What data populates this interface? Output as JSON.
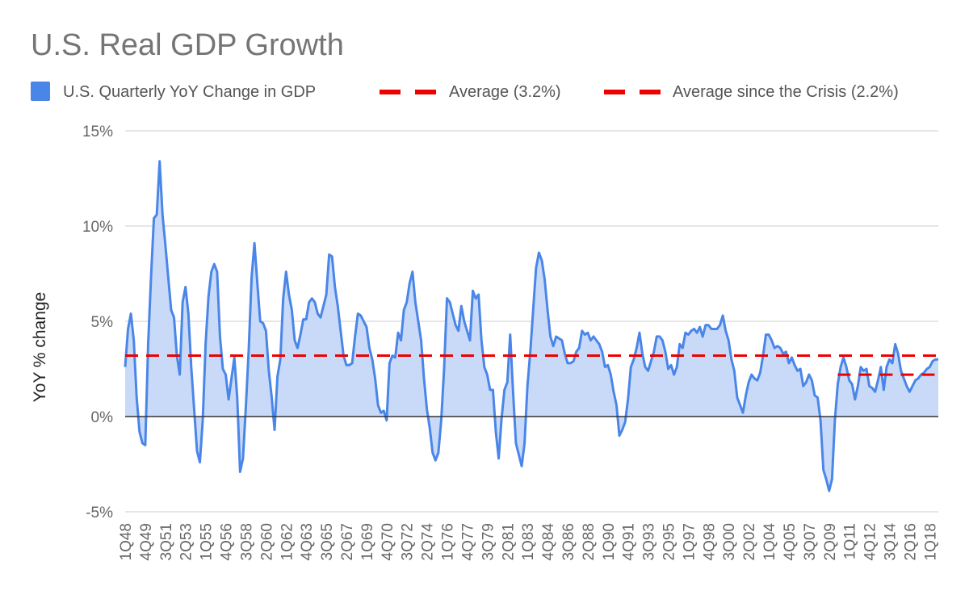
{
  "chart_data": {
    "type": "area",
    "title": "U.S. Real GDP Growth",
    "y_label": "YoY % change",
    "categories": [
      "1Q48",
      null,
      null,
      null,
      null,
      null,
      null,
      "4Q49",
      null,
      null,
      null,
      null,
      null,
      null,
      "3Q51",
      null,
      null,
      null,
      null,
      null,
      null,
      "2Q53",
      null,
      null,
      null,
      null,
      null,
      null,
      "1Q55",
      null,
      null,
      null,
      null,
      null,
      null,
      "4Q56",
      null,
      null,
      null,
      null,
      null,
      null,
      "3Q58",
      null,
      null,
      null,
      null,
      null,
      null,
      "2Q60",
      null,
      null,
      null,
      null,
      null,
      null,
      "1Q62",
      null,
      null,
      null,
      null,
      null,
      null,
      "4Q63",
      null,
      null,
      null,
      null,
      null,
      null,
      "3Q65",
      null,
      null,
      null,
      null,
      null,
      null,
      "2Q67",
      null,
      null,
      null,
      null,
      null,
      null,
      "1Q69",
      null,
      null,
      null,
      null,
      null,
      null,
      "4Q70",
      null,
      null,
      null,
      null,
      null,
      null,
      "3Q72",
      null,
      null,
      null,
      null,
      null,
      null,
      "2Q74",
      null,
      null,
      null,
      null,
      null,
      null,
      "1Q76",
      null,
      null,
      null,
      null,
      null,
      null,
      "4Q77",
      null,
      null,
      null,
      null,
      null,
      null,
      "3Q79",
      null,
      null,
      null,
      null,
      null,
      null,
      "2Q81",
      null,
      null,
      null,
      null,
      null,
      null,
      "1Q83",
      null,
      null,
      null,
      null,
      null,
      null,
      "4Q84",
      null,
      null,
      null,
      null,
      null,
      null,
      "3Q86",
      null,
      null,
      null,
      null,
      null,
      null,
      "2Q88",
      null,
      null,
      null,
      null,
      null,
      null,
      "1Q90",
      null,
      null,
      null,
      null,
      null,
      null,
      "4Q91",
      null,
      null,
      null,
      null,
      null,
      null,
      "3Q93",
      null,
      null,
      null,
      null,
      null,
      null,
      "2Q95",
      null,
      null,
      null,
      null,
      null,
      null,
      "1Q97",
      null,
      null,
      null,
      null,
      null,
      null,
      "4Q98",
      null,
      null,
      null,
      null,
      null,
      null,
      "3Q00",
      null,
      null,
      null,
      null,
      null,
      null,
      "2Q02",
      null,
      null,
      null,
      null,
      null,
      null,
      "1Q04",
      null,
      null,
      null,
      null,
      null,
      null,
      "4Q05",
      null,
      null,
      null,
      null,
      null,
      null,
      "3Q07",
      null,
      null,
      null,
      null,
      null,
      null,
      "2Q09",
      null,
      null,
      null,
      null,
      null,
      null,
      "1Q11",
      null,
      null,
      null,
      null,
      null,
      null,
      "4Q12",
      null,
      null,
      null,
      null,
      null,
      null,
      "3Q14",
      null,
      null,
      null,
      null,
      null,
      null,
      "2Q16",
      null,
      null,
      null,
      null,
      null,
      null,
      "1Q18",
      null,
      null,
      null
    ],
    "series": [
      {
        "name": "U.S. Quarterly YoY Change in GDP",
        "color": "#4a86e8",
        "fill": "#c9daf8",
        "values": [
          2.6,
          4.6,
          5.4,
          4.0,
          1.0,
          -0.8,
          -1.4,
          -1.5,
          3.8,
          7.3,
          10.4,
          10.6,
          13.4,
          10.6,
          9.0,
          7.3,
          5.6,
          5.2,
          3.2,
          2.2,
          6.0,
          6.8,
          5.4,
          2.6,
          0.4,
          -1.8,
          -2.4,
          -0.2,
          3.8,
          6.3,
          7.6,
          8.0,
          7.6,
          4.2,
          2.5,
          2.2,
          0.9,
          2.0,
          3.1,
          1.0,
          -2.9,
          -2.2,
          0.5,
          3.5,
          7.3,
          9.1,
          7.0,
          5.0,
          4.9,
          4.5,
          2.4,
          1.0,
          -0.7,
          2.1,
          3.0,
          6.2,
          7.6,
          6.4,
          5.6,
          4.0,
          3.6,
          4.3,
          5.1,
          5.1,
          6.0,
          6.2,
          6.0,
          5.4,
          5.2,
          5.8,
          6.4,
          8.5,
          8.4,
          6.8,
          5.8,
          4.5,
          3.2,
          2.7,
          2.7,
          2.8,
          4.2,
          5.4,
          5.3,
          5.0,
          4.7,
          3.6,
          3.0,
          2.0,
          0.6,
          0.2,
          0.3,
          -0.2,
          2.8,
          3.2,
          3.1,
          4.4,
          4.0,
          5.6,
          6.0,
          7.0,
          7.6,
          6.0,
          5.0,
          4.0,
          2.0,
          0.4,
          -0.6,
          -1.9,
          -2.3,
          -1.9,
          -0.2,
          2.5,
          6.2,
          6.0,
          5.4,
          4.8,
          4.5,
          5.8,
          5.0,
          4.5,
          4.0,
          6.6,
          6.2,
          6.4,
          4.0,
          2.6,
          2.2,
          1.4,
          1.4,
          -0.8,
          -2.2,
          -0.1,
          1.4,
          1.8,
          4.3,
          1.3,
          -1.4,
          -2.0,
          -2.6,
          -1.4,
          1.6,
          3.4,
          5.6,
          7.8,
          8.6,
          8.2,
          7.2,
          5.6,
          4.2,
          3.7,
          4.2,
          4.1,
          4.0,
          3.3,
          2.8,
          2.8,
          2.9,
          3.4,
          3.6,
          4.5,
          4.3,
          4.4,
          4.0,
          4.2,
          4.0,
          3.8,
          3.4,
          2.6,
          2.7,
          2.2,
          1.3,
          0.6,
          -1.0,
          -0.7,
          -0.3,
          0.9,
          2.6,
          3.0,
          3.6,
          4.4,
          3.3,
          2.6,
          2.4,
          2.9,
          3.4,
          4.2,
          4.2,
          4.0,
          3.4,
          2.5,
          2.7,
          2.2,
          2.6,
          3.8,
          3.6,
          4.4,
          4.3,
          4.5,
          4.6,
          4.4,
          4.7,
          4.2,
          4.8,
          4.8,
          4.6,
          4.6,
          4.6,
          4.8,
          5.3,
          4.5,
          4.0,
          3.0,
          2.4,
          1.0,
          0.6,
          0.2,
          1.1,
          1.8,
          2.2,
          2.0,
          1.9,
          2.3,
          3.2,
          4.3,
          4.3,
          4.0,
          3.6,
          3.7,
          3.6,
          3.3,
          3.4,
          2.8,
          3.1,
          2.7,
          2.4,
          2.5,
          1.6,
          1.8,
          2.2,
          1.9,
          1.1,
          1.0,
          -0.2,
          -2.8,
          -3.3,
          -3.9,
          -3.3,
          -0.2,
          1.7,
          2.6,
          3.1,
          2.6,
          1.9,
          1.7,
          0.9,
          1.6,
          2.6,
          2.4,
          2.5,
          1.6,
          1.5,
          1.3,
          1.9,
          2.6,
          1.4,
          2.6,
          3.0,
          2.8,
          3.8,
          3.3,
          2.4,
          2.0,
          1.6,
          1.3,
          1.6,
          1.9,
          2.0,
          2.2,
          2.3,
          2.5,
          2.6,
          2.9,
          3.0,
          3.0
        ]
      }
    ],
    "reference_lines": [
      {
        "name": "Average (3.2%)",
        "value": 3.2,
        "color": "#ee0000",
        "from": 0
      },
      {
        "name": "Average since the Crisis (2.2%)",
        "value": 2.2,
        "color": "#ee0000",
        "from": 248
      }
    ],
    "ylim": [
      -5,
      15
    ],
    "yticks": [
      {
        "value": -5,
        "label": "-5%"
      },
      {
        "value": 0,
        "label": "0%"
      },
      {
        "value": 5,
        "label": "5%"
      },
      {
        "value": 10,
        "label": "10%"
      },
      {
        "value": 15,
        "label": "15%"
      }
    ],
    "grid": true
  }
}
